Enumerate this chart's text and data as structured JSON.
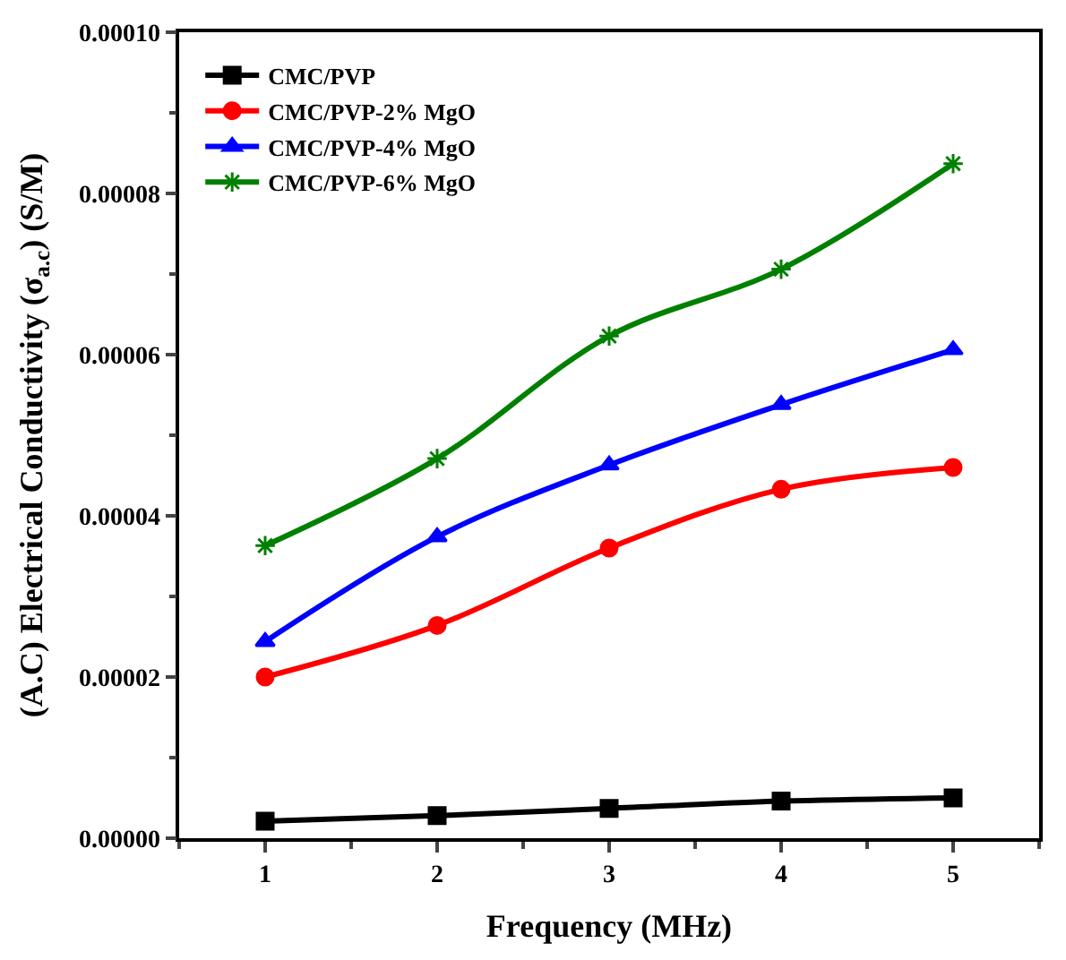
{
  "chart_data": {
    "type": "line",
    "xlabel": "Frequency (MHz)",
    "ylabel": "(A.C) Electrical Conductivity (σ$_{a.c}$) (S/M)",
    "x": [
      1,
      2,
      3,
      4,
      5
    ],
    "xlim": [
      0.5,
      5.5
    ],
    "xticks": [
      1,
      2,
      3,
      4,
      5
    ],
    "ylim": [
      0,
      0.0001
    ],
    "yticks": [
      {
        "value": 0,
        "label": "0.00000"
      },
      {
        "value": 2e-05,
        "label": "0.00002"
      },
      {
        "value": 4e-05,
        "label": "0.00004"
      },
      {
        "value": 6e-05,
        "label": "0.00006"
      },
      {
        "value": 8e-05,
        "label": "0.00008"
      },
      {
        "value": 0.0001,
        "label": "0.00010"
      }
    ],
    "legend": "top left",
    "line_style": "solid",
    "series": [
      {
        "name": "CMC/PVP",
        "color": "#000000",
        "marker": "square",
        "values": [
          2.1e-06,
          2.8e-06,
          3.7e-06,
          4.6e-06,
          5e-06
        ]
      },
      {
        "name": "CMC/PVP-2% MgO",
        "color": "#ff0000",
        "marker": "circle",
        "values": [
          2e-05,
          2.64e-05,
          3.6e-05,
          4.33e-05,
          4.6e-05
        ]
      },
      {
        "name": "CMC/PVP-4% MgO",
        "color": "#0000ff",
        "marker": "triangle",
        "values": [
          2.44e-05,
          3.74e-05,
          4.63e-05,
          5.38e-05,
          6.06e-05
        ]
      },
      {
        "name": "CMC/PVP-6% MgO",
        "color": "#008000",
        "marker": "cross",
        "values": [
          3.63e-05,
          4.71e-05,
          6.23e-05,
          7.06e-05,
          8.37e-05
        ]
      }
    ]
  }
}
